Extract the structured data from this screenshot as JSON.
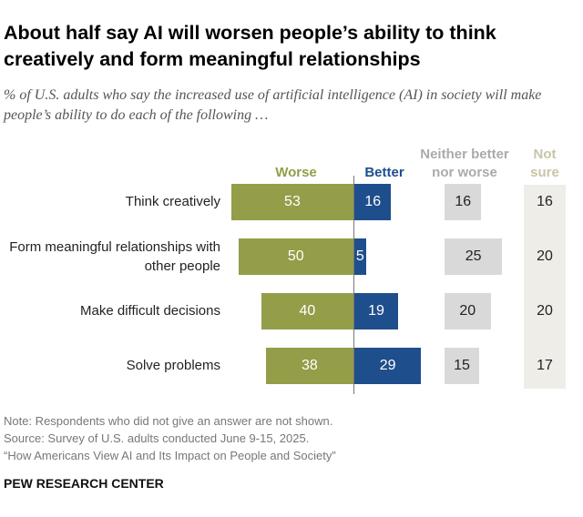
{
  "title": "About half say AI will worsen people’s ability to think creatively and form meaningful relationships",
  "subtitle": "% of U.S. adults who say the increased use of artificial intelligence (AI) in society will make people’s ability to do each of the following …",
  "notes": [
    "Note: Respondents who did not give an answer are not shown.",
    "Source: Survey of U.S. adults conducted June 9-15, 2025.",
    "“How Americans View AI and Its Impact on People and Society”"
  ],
  "brand": "PEW RESEARCH CENTER",
  "chart_data": {
    "type": "bar",
    "categories": [
      "Think creatively",
      "Form meaningful relationships with other people",
      "Make difficult decisions",
      "Solve problems"
    ],
    "series": [
      {
        "name": "Worse",
        "values": [
          53,
          50,
          40,
          38
        ],
        "color": "#949d48"
      },
      {
        "name": "Better",
        "values": [
          16,
          5,
          19,
          29
        ],
        "color": "#1f4e8c"
      },
      {
        "name": "Neither better nor worse",
        "values": [
          16,
          25,
          20,
          15
        ],
        "color": "#d9d9d9"
      },
      {
        "name": "Not sure",
        "values": [
          16,
          20,
          20,
          17
        ],
        "color": "#eeede8"
      }
    ]
  }
}
